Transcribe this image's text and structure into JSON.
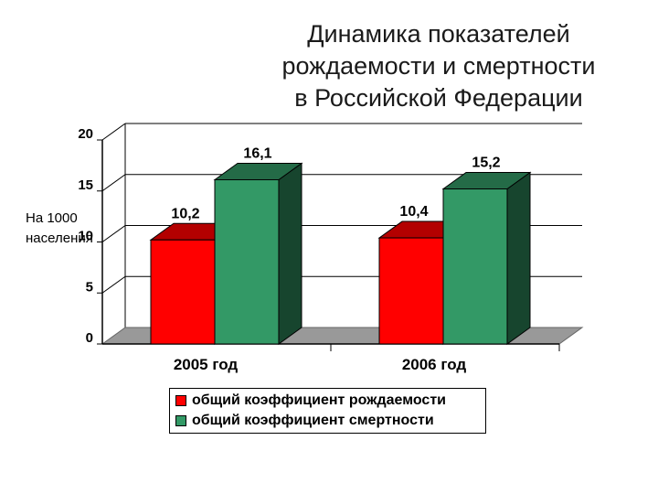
{
  "title_lines": [
    "Динамика показателей",
    "рождаемости и смертности",
    "в Российской Федерации"
  ],
  "ylabel_lines": [
    "На 1000",
    "населения"
  ],
  "chart_data": {
    "type": "bar",
    "title": "Динамика показателей рождаемости и смертности в Российской Федерации",
    "ylabel": "На 1000 населения",
    "xlabel": "",
    "categories": [
      "2005 год",
      "2006 год"
    ],
    "series": [
      {
        "name": "общий коэффициент рождаемости",
        "values": [
          10.2,
          10.4
        ],
        "labels": [
          "10,2",
          "10,4"
        ],
        "color": "#ff0000"
      },
      {
        "name": "общий коэффициент смертности",
        "values": [
          16.1,
          15.2
        ],
        "labels": [
          "16,1",
          "15,2"
        ],
        "color": "#339966"
      }
    ],
    "ylim": [
      0,
      20
    ],
    "yticks": [
      "0",
      "5",
      "10",
      "15",
      "20"
    ],
    "grid": true,
    "legend": "bottom"
  }
}
